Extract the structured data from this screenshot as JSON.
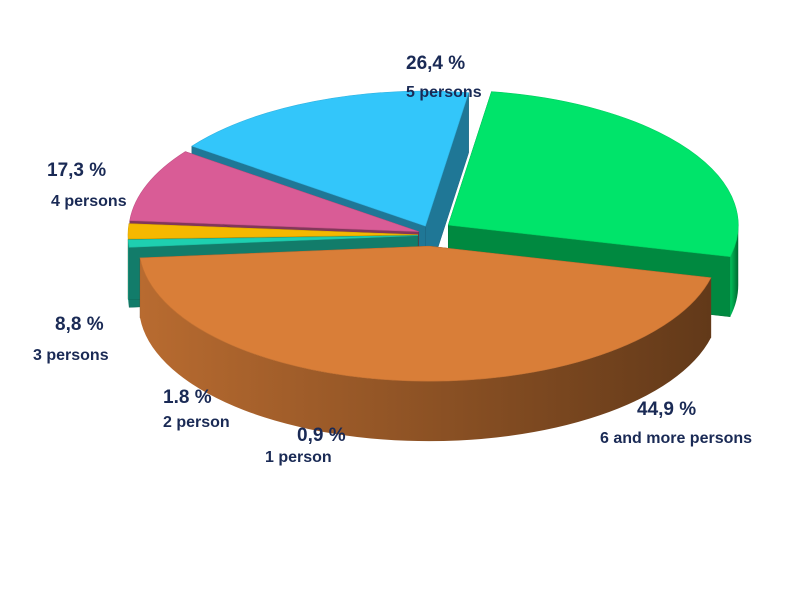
{
  "chart_data": {
    "type": "pie",
    "style": "3d-exploded",
    "legend": "none",
    "slices": [
      {
        "label": "1 person",
        "percent_label": "0,9 %",
        "value": 0.9,
        "color": "#1ecfb0"
      },
      {
        "label": "2 person",
        "percent_label": "1.8 %",
        "value": 1.8,
        "color": "#f5b800"
      },
      {
        "label": "3 persons",
        "percent_label": "8,8 %",
        "value": 8.8,
        "color": "#d95c96"
      },
      {
        "label": "4 persons",
        "percent_label": "17,3 %",
        "value": 17.3,
        "color": "#33c6fa"
      },
      {
        "label": "5 persons",
        "percent_label": "26,4 %",
        "value": 26.4,
        "color": "#00e46a"
      },
      {
        "label": "6 and more persons",
        "percent_label": "44,9 %",
        "value": 44.9,
        "color": "#d97e38"
      }
    ]
  }
}
